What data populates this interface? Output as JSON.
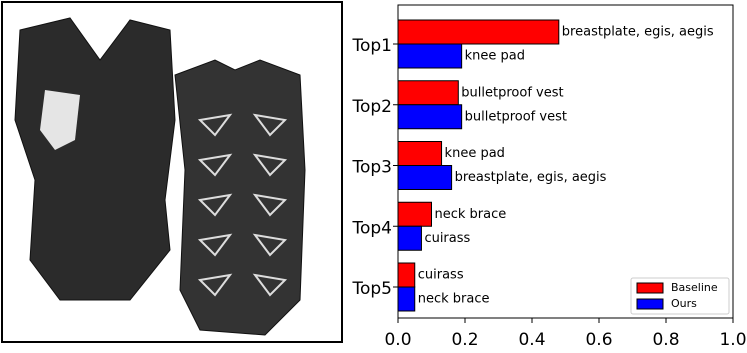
{
  "chart_data": {
    "type": "barh",
    "categories": [
      "Top1",
      "Top2",
      "Top3",
      "Top4",
      "Top5"
    ],
    "series": [
      {
        "name": "Baseline",
        "color": "#ff0000",
        "values": [
          0.48,
          0.18,
          0.13,
          0.1,
          0.05
        ],
        "labels": [
          "breastplate, egis, aegis",
          "bulletproof vest",
          "knee pad",
          "neck brace",
          "cuirass"
        ]
      },
      {
        "name": "Ours",
        "color": "#0000ff",
        "values": [
          0.19,
          0.19,
          0.16,
          0.07,
          0.05
        ],
        "labels": [
          "knee pad",
          "bulletproof vest",
          "breastplate, egis, aegis",
          "cuirass",
          "neck brace"
        ]
      }
    ],
    "xlim": [
      0,
      1.0
    ],
    "xticks": [
      {
        "value": 0,
        "label": "0.0"
      },
      0.2,
      0.4,
      0.6,
      0.8,
      {
        "value": 1.0,
        "label": "1.0"
      }
    ],
    "legend": "lower right"
  }
}
